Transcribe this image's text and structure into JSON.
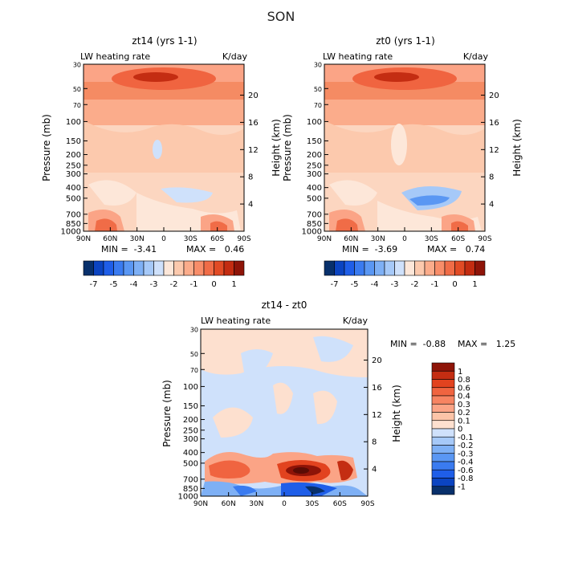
{
  "figure": {
    "title": "SON"
  },
  "colors": {
    "diff_palette": [
      "#08306b",
      "#0b44c1",
      "#1f5ee8",
      "#3a7bf0",
      "#5a97f3",
      "#7eb0f5",
      "#a6c9f8",
      "#cfe1fb",
      "#fde0cf",
      "#fcc4a8",
      "#fba486",
      "#f78462",
      "#f06440",
      "#e2431f",
      "#c42d12",
      "#8e1408"
    ],
    "bar_palette": [
      "#08306b",
      "#0b44c1",
      "#1f5ee8",
      "#3a7bf0",
      "#5a97f3",
      "#7eb0f5",
      "#a6c9f8",
      "#cfe1fb",
      "#fde7d9",
      "#fcc9ad",
      "#fbac8b",
      "#f88d69",
      "#f06c47",
      "#e14b25",
      "#c32c11",
      "#8e1408"
    ]
  },
  "chart_data": [
    {
      "type": "heatmap",
      "id": "panel_zt14",
      "title": "zt14 (yrs 1-1)",
      "subtitle_left": "LW heating rate",
      "subtitle_right": "K/day",
      "xlabel": "",
      "ylabel": "Pressure (mb)",
      "y2label": "Height (km)",
      "x_ticks": [
        "90N",
        "60N",
        "30N",
        "0",
        "30S",
        "60S",
        "90S"
      ],
      "y_ticks": [
        "30",
        "50",
        "70",
        "100",
        "150",
        "200",
        "250",
        "300",
        "400",
        "500",
        "700",
        "850",
        "1000"
      ],
      "y2_ticks": [
        "20",
        "16",
        "12",
        "8",
        "4"
      ],
      "min_label": "MIN =  -3.41",
      "max_label": "MAX =   0.46",
      "colorbar_ticks": [
        "-7",
        "-5",
        "-4",
        "-3",
        "-2",
        "-1",
        "0",
        "1"
      ],
      "colorbar_orientation": "horizontal"
    },
    {
      "type": "heatmap",
      "id": "panel_zt0",
      "title": "zt0 (yrs 1-1)",
      "subtitle_left": "LW heating rate",
      "subtitle_right": "K/day",
      "xlabel": "",
      "ylabel": "Pressure (mb)",
      "y2label": "Height (km)",
      "x_ticks": [
        "90N",
        "60N",
        "30N",
        "0",
        "30S",
        "60S",
        "90S"
      ],
      "y_ticks": [
        "30",
        "50",
        "70",
        "100",
        "150",
        "200",
        "250",
        "300",
        "400",
        "500",
        "700",
        "850",
        "1000"
      ],
      "y2_ticks": [
        "20",
        "16",
        "12",
        "8",
        "4"
      ],
      "min_label": "MIN =  -3.69",
      "max_label": "MAX =   0.74",
      "colorbar_ticks": [
        "-7",
        "-5",
        "-4",
        "-3",
        "-2",
        "-1",
        "0",
        "1"
      ],
      "colorbar_orientation": "horizontal"
    },
    {
      "type": "heatmap",
      "id": "panel_diff",
      "title": "zt14 - zt0",
      "subtitle_left": "LW heating rate",
      "subtitle_right": "K/day",
      "xlabel": "",
      "ylabel": "Pressure (mb)",
      "y2label": "Height (km)",
      "x_ticks": [
        "90N",
        "60N",
        "30N",
        "0",
        "30S",
        "60S",
        "90S"
      ],
      "y_ticks": [
        "30",
        "50",
        "70",
        "100",
        "150",
        "200",
        "250",
        "300",
        "400",
        "500",
        "700",
        "850",
        "1000"
      ],
      "y2_ticks": [
        "20",
        "16",
        "12",
        "8",
        "4"
      ],
      "min_label": "MIN =  -0.88",
      "max_label": "MAX =   1.25",
      "colorbar_ticks": [
        "1",
        "0.8",
        "0.6",
        "0.4",
        "0.3",
        "0.2",
        "0.1",
        "0",
        "-0.1",
        "-0.2",
        "-0.3",
        "-0.4",
        "-0.6",
        "-0.8",
        "-1"
      ],
      "colorbar_orientation": "vertical"
    }
  ]
}
